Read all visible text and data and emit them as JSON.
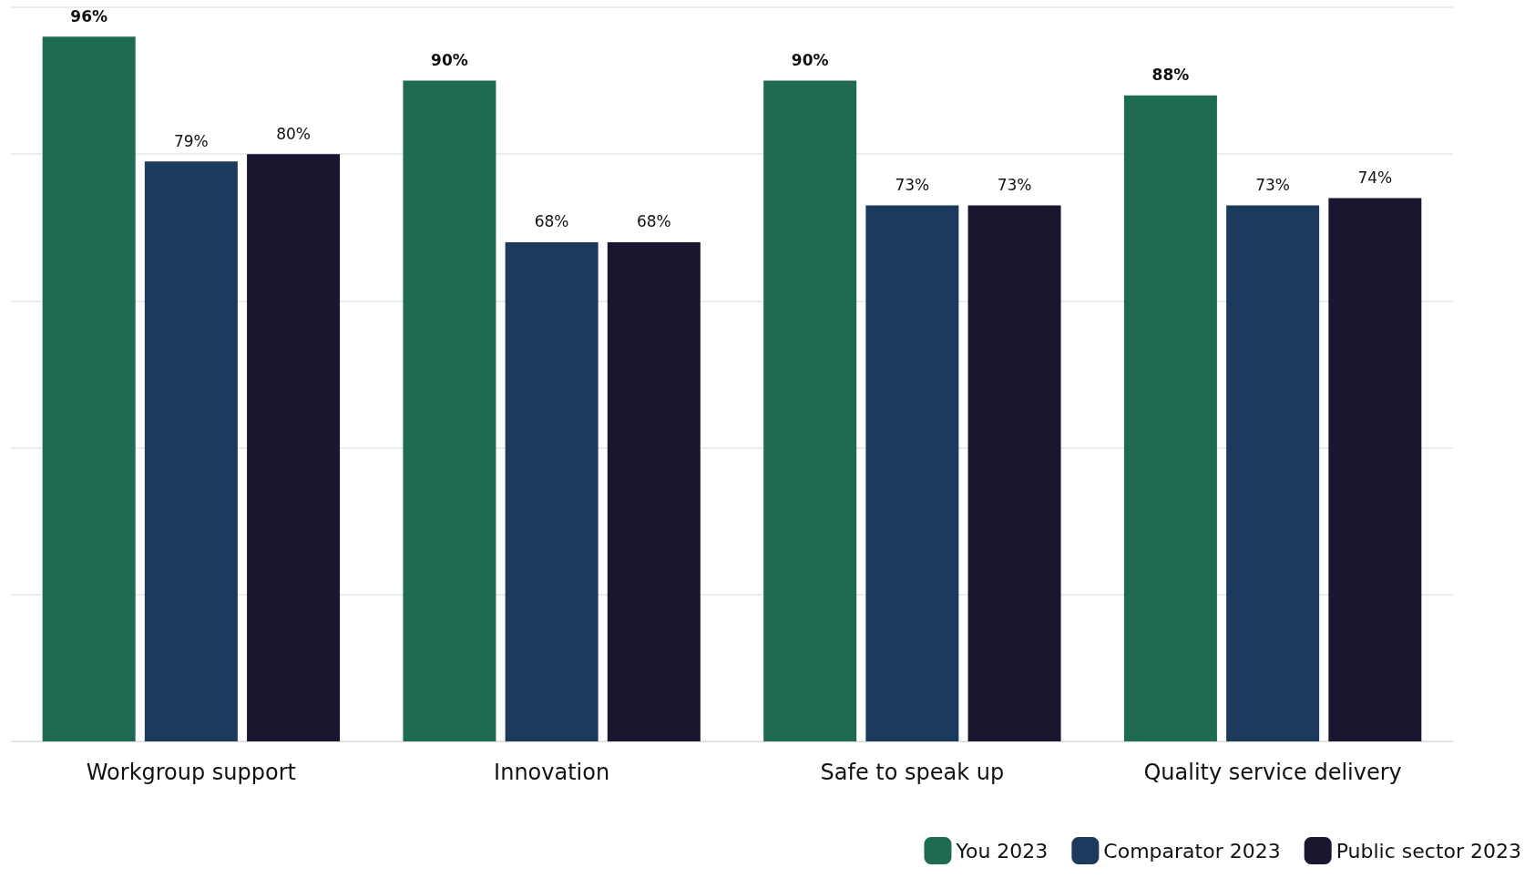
{
  "chart_data": {
    "type": "bar",
    "categories": [
      "Workgroup support",
      "Innovation",
      "Safe to speak up",
      "Quality service delivery"
    ],
    "series": [
      {
        "name": "You 2023",
        "color": "#1e6b52",
        "values": [
          96,
          90,
          90,
          88
        ],
        "value_labels": [
          "96%",
          "90%",
          "90%",
          "88%"
        ]
      },
      {
        "name": "Comparator 2023",
        "color": "#1b3a5c",
        "values": [
          79,
          68,
          73,
          73
        ],
        "value_labels": [
          "79%",
          "68%",
          "73%",
          "73%"
        ]
      },
      {
        "name": "Public sector 2023",
        "color": "#1a1630",
        "values": [
          80,
          68,
          73,
          74
        ],
        "value_labels": [
          "80%",
          "68%",
          "73%",
          "74%"
        ]
      }
    ],
    "ylim": [
      0,
      100
    ],
    "yticks": [
      {
        "value": 0,
        "label": null
      },
      {
        "value": 20,
        "label": null
      },
      {
        "value": 40,
        "label": null
      },
      {
        "value": 60,
        "label": null
      },
      {
        "value": 80,
        "label": null
      },
      {
        "value": 100,
        "label": null
      }
    ],
    "grid": "y",
    "legend": "bottom right",
    "tick_labels": "x"
  }
}
